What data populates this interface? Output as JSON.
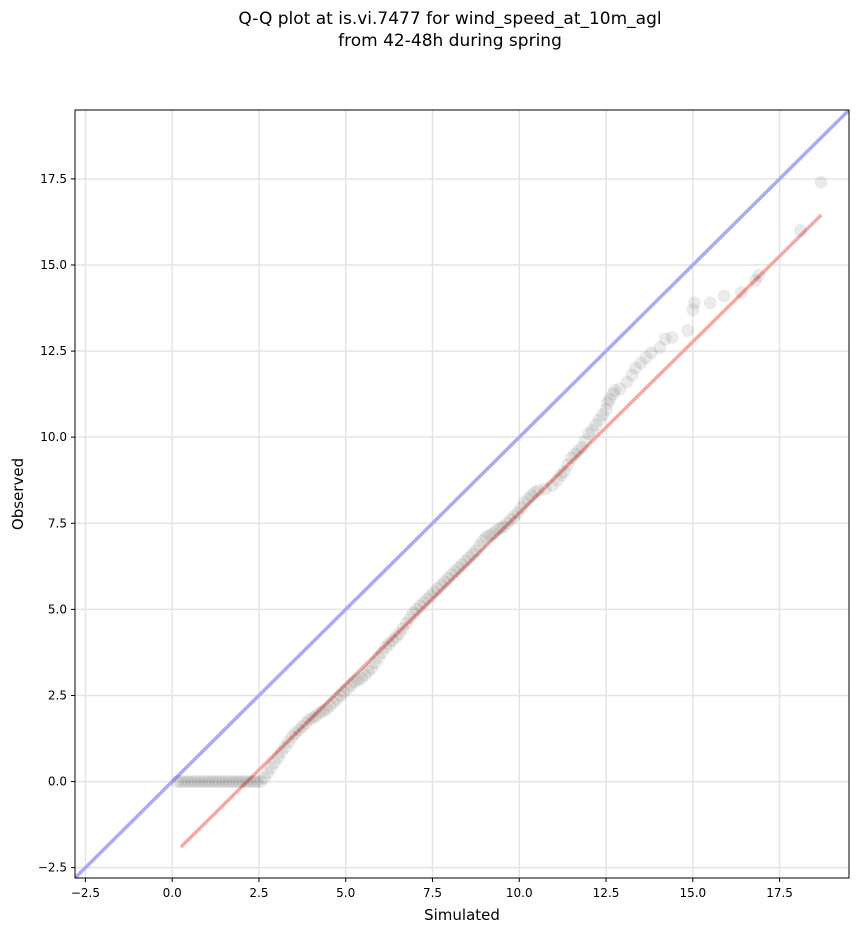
{
  "title_line1": "Q-Q plot at is.vi.7477 for wind_speed_at_10m_agl",
  "title_line2": "from 42-48h during spring",
  "chart_data": {
    "type": "scatter",
    "title": "Q-Q plot at is.vi.7477 for wind_speed_at_10m_agl from 42-48h during spring",
    "xlabel": "Simulated",
    "ylabel": "Observed",
    "xlim": [
      -2.8,
      19.5
    ],
    "ylim": [
      -2.8,
      19.5
    ],
    "xticks": [
      -2.5,
      0.0,
      2.5,
      5.0,
      7.5,
      10.0,
      12.5,
      15.0,
      17.5
    ],
    "yticks": [
      -2.5,
      0.0,
      2.5,
      5.0,
      7.5,
      10.0,
      12.5,
      15.0,
      17.5
    ],
    "xtick_labels": [
      "−2.5",
      "0.0",
      "2.5",
      "5.0",
      "7.5",
      "10.0",
      "12.5",
      "15.0",
      "17.5"
    ],
    "ytick_labels": [
      "−2.5",
      "0.0",
      "2.5",
      "5.0",
      "7.5",
      "10.0",
      "12.5",
      "15.0",
      "17.5"
    ],
    "grid": true,
    "colors": {
      "points": "#000000",
      "identity_line": "#aaaaf5",
      "fit_line": "#f5a8a8"
    },
    "reference_lines": [
      {
        "kind": "identity",
        "x": [
          -2.8,
          19.5
        ],
        "y": [
          -2.8,
          19.5
        ]
      },
      {
        "kind": "fit",
        "x": [
          0.25,
          18.7
        ],
        "y": [
          -1.9,
          16.45
        ]
      }
    ],
    "points": [
      [
        0.15,
        0.0
      ],
      [
        0.25,
        0.0
      ],
      [
        0.35,
        0.0
      ],
      [
        0.45,
        0.0
      ],
      [
        0.55,
        0.0
      ],
      [
        0.65,
        0.0
      ],
      [
        0.75,
        0.0
      ],
      [
        0.85,
        0.0
      ],
      [
        0.95,
        0.0
      ],
      [
        1.05,
        0.0
      ],
      [
        1.15,
        0.0
      ],
      [
        1.25,
        0.0
      ],
      [
        1.35,
        0.0
      ],
      [
        1.45,
        0.0
      ],
      [
        1.55,
        0.0
      ],
      [
        1.65,
        0.0
      ],
      [
        1.75,
        0.0
      ],
      [
        1.85,
        0.0
      ],
      [
        1.95,
        0.0
      ],
      [
        2.05,
        0.0
      ],
      [
        2.15,
        0.0
      ],
      [
        2.25,
        0.0
      ],
      [
        2.35,
        0.0
      ],
      [
        2.45,
        0.0
      ],
      [
        2.55,
        0.0
      ],
      [
        2.65,
        0.1
      ],
      [
        2.75,
        0.25
      ],
      [
        2.85,
        0.4
      ],
      [
        2.95,
        0.55
      ],
      [
        3.05,
        0.7
      ],
      [
        3.15,
        0.85
      ],
      [
        3.25,
        1.0
      ],
      [
        3.35,
        1.15
      ],
      [
        3.45,
        1.3
      ],
      [
        3.55,
        1.4
      ],
      [
        3.65,
        1.5
      ],
      [
        3.75,
        1.6
      ],
      [
        3.85,
        1.7
      ],
      [
        3.95,
        1.8
      ],
      [
        4.05,
        1.85
      ],
      [
        4.15,
        1.9
      ],
      [
        4.25,
        2.0
      ],
      [
        4.35,
        2.05
      ],
      [
        4.45,
        2.1
      ],
      [
        4.55,
        2.2
      ],
      [
        4.65,
        2.3
      ],
      [
        4.75,
        2.4
      ],
      [
        4.85,
        2.5
      ],
      [
        4.95,
        2.6
      ],
      [
        5.05,
        2.7
      ],
      [
        5.15,
        2.8
      ],
      [
        5.25,
        2.9
      ],
      [
        5.35,
        2.95
      ],
      [
        5.45,
        3.0
      ],
      [
        5.55,
        3.1
      ],
      [
        5.65,
        3.2
      ],
      [
        5.75,
        3.3
      ],
      [
        5.85,
        3.45
      ],
      [
        5.95,
        3.6
      ],
      [
        6.05,
        3.75
      ],
      [
        6.15,
        3.9
      ],
      [
        6.25,
        4.0
      ],
      [
        6.35,
        4.1
      ],
      [
        6.45,
        4.2
      ],
      [
        6.55,
        4.3
      ],
      [
        6.65,
        4.45
      ],
      [
        6.75,
        4.6
      ],
      [
        6.85,
        4.75
      ],
      [
        6.95,
        4.9
      ],
      [
        7.05,
        5.0
      ],
      [
        7.15,
        5.1
      ],
      [
        7.25,
        5.2
      ],
      [
        7.35,
        5.3
      ],
      [
        7.45,
        5.4
      ],
      [
        7.55,
        5.5
      ],
      [
        7.65,
        5.6
      ],
      [
        7.75,
        5.7
      ],
      [
        7.85,
        5.8
      ],
      [
        7.95,
        5.9
      ],
      [
        8.05,
        6.0
      ],
      [
        8.15,
        6.1
      ],
      [
        8.25,
        6.2
      ],
      [
        8.35,
        6.3
      ],
      [
        8.45,
        6.4
      ],
      [
        8.55,
        6.5
      ],
      [
        8.65,
        6.6
      ],
      [
        8.75,
        6.7
      ],
      [
        8.85,
        6.85
      ],
      [
        8.95,
        7.0
      ],
      [
        9.05,
        7.1
      ],
      [
        9.15,
        7.15
      ],
      [
        9.25,
        7.2
      ],
      [
        9.35,
        7.3
      ],
      [
        9.45,
        7.35
      ],
      [
        9.55,
        7.4
      ],
      [
        9.65,
        7.5
      ],
      [
        9.75,
        7.6
      ],
      [
        9.85,
        7.7
      ],
      [
        9.95,
        7.8
      ],
      [
        10.05,
        7.95
      ],
      [
        10.15,
        8.1
      ],
      [
        10.25,
        8.2
      ],
      [
        10.35,
        8.3
      ],
      [
        10.45,
        8.4
      ],
      [
        10.55,
        8.45
      ],
      [
        10.75,
        8.5
      ],
      [
        10.95,
        8.6
      ],
      [
        11.1,
        8.75
      ],
      [
        11.2,
        8.9
      ],
      [
        11.3,
        9.0
      ],
      [
        11.4,
        9.2
      ],
      [
        11.5,
        9.4
      ],
      [
        11.6,
        9.5
      ],
      [
        11.7,
        9.6
      ],
      [
        11.8,
        9.7
      ],
      [
        11.9,
        9.9
      ],
      [
        12.0,
        10.1
      ],
      [
        12.1,
        10.2
      ],
      [
        12.2,
        10.35
      ],
      [
        12.3,
        10.5
      ],
      [
        12.4,
        10.65
      ],
      [
        12.5,
        10.8
      ],
      [
        12.55,
        11.0
      ],
      [
        12.6,
        11.1
      ],
      [
        12.7,
        11.25
      ],
      [
        12.75,
        11.35
      ],
      [
        12.9,
        11.4
      ],
      [
        13.1,
        11.6
      ],
      [
        13.25,
        11.8
      ],
      [
        13.35,
        12.0
      ],
      [
        13.5,
        12.15
      ],
      [
        13.65,
        12.3
      ],
      [
        13.8,
        12.45
      ],
      [
        14.05,
        12.6
      ],
      [
        14.2,
        12.85
      ],
      [
        14.4,
        12.9
      ],
      [
        14.85,
        13.1
      ],
      [
        15.0,
        13.7
      ],
      [
        15.05,
        13.9
      ],
      [
        15.5,
        13.9
      ],
      [
        15.9,
        14.1
      ],
      [
        16.4,
        14.2
      ],
      [
        16.8,
        14.55
      ],
      [
        16.9,
        14.7
      ],
      [
        18.1,
        16.0
      ],
      [
        18.7,
        17.4
      ]
    ]
  }
}
